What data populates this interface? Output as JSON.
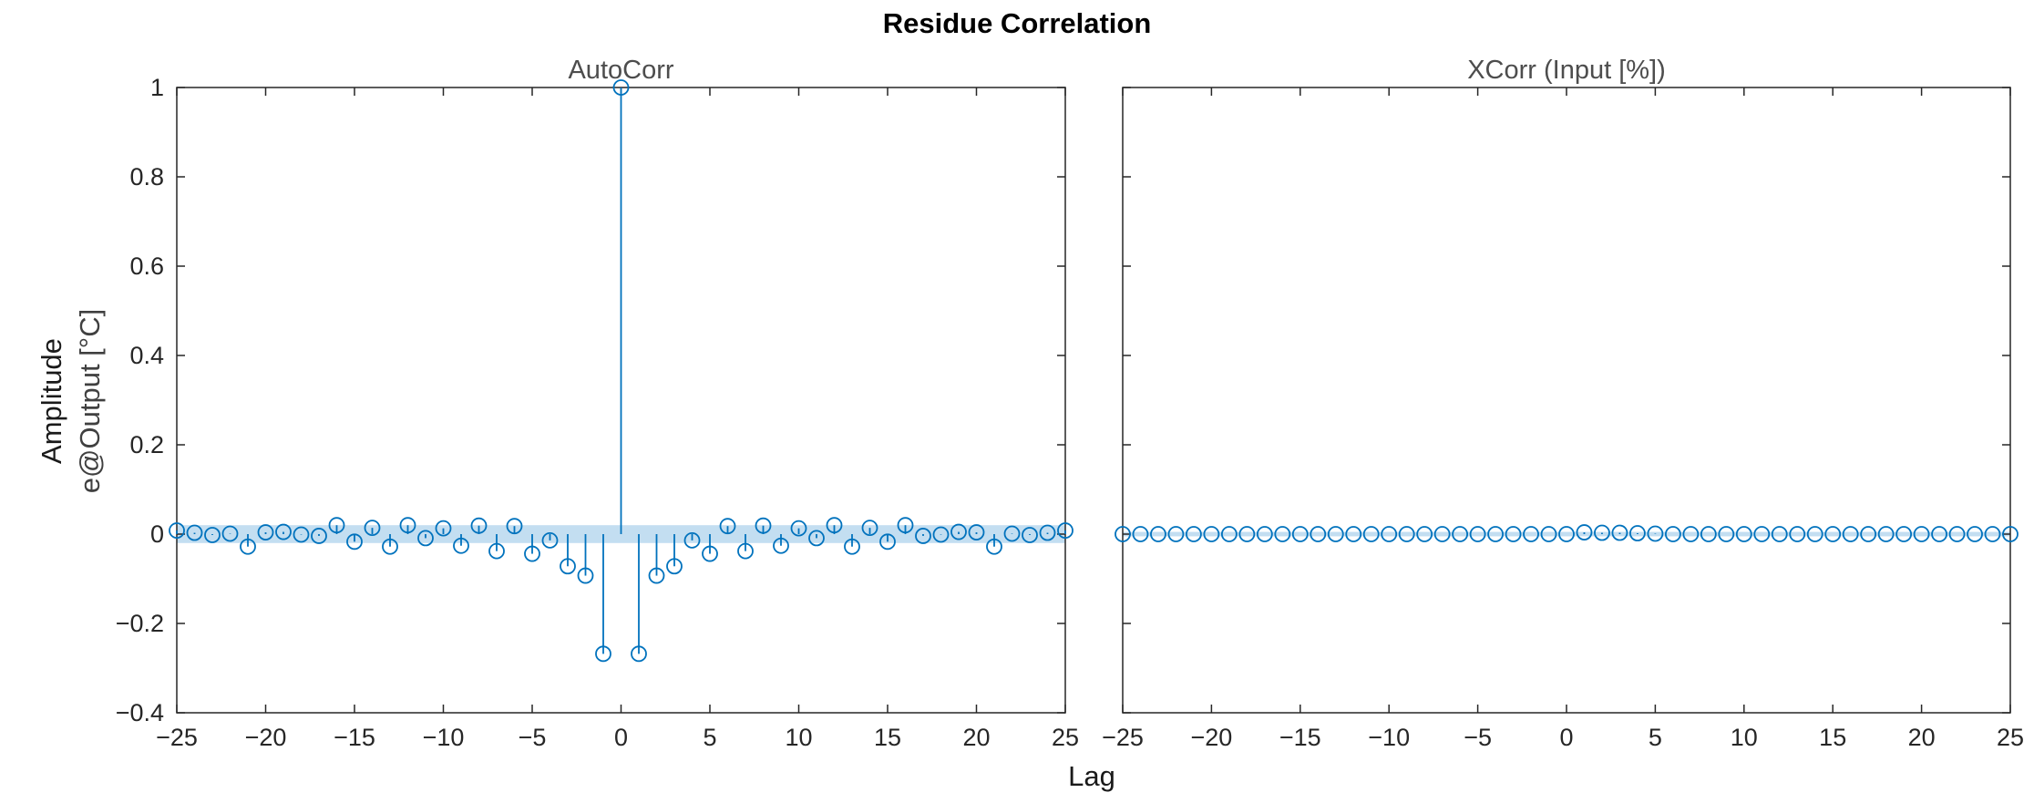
{
  "title": "Residue Correlation",
  "xlabel": "Lag",
  "ylabel": [
    "Amplitude",
    "e@Output [°C]"
  ],
  "colors": {
    "series": "#0072BD",
    "band": "#B9D8EE",
    "axis": "#262626",
    "tick_text": "#262626",
    "axes_title": "#4d4d4d"
  },
  "chart_data": [
    {
      "type": "stem",
      "title": "AutoCorr",
      "xlabel": "Lag",
      "ylabel": "Amplitude e@Output [°C]",
      "xlim": [
        -25,
        25
      ],
      "ylim": [
        -0.4,
        1
      ],
      "xticks": [
        -25,
        -20,
        -15,
        -10,
        -5,
        0,
        5,
        10,
        15,
        20,
        25
      ],
      "yticks": [
        -0.4,
        -0.2,
        0,
        0.2,
        0.4,
        0.6,
        0.8,
        1
      ],
      "xtick_labels": [
        "−25",
        "−20",
        "−15",
        "−10",
        "−5",
        "0",
        "5",
        "10",
        "15",
        "20",
        "25"
      ],
      "ytick_labels": [
        "−0.4",
        "−0.2",
        "0",
        "0.2",
        "0.4",
        "0.6",
        "0.8",
        "1"
      ],
      "confidence_band": [
        -0.02,
        0.02
      ],
      "x": [
        -25,
        -24,
        -23,
        -22,
        -21,
        -20,
        -19,
        -18,
        -17,
        -16,
        -15,
        -14,
        -13,
        -12,
        -11,
        -10,
        -9,
        -8,
        -7,
        -6,
        -5,
        -4,
        -3,
        -2,
        -1,
        0,
        1,
        2,
        3,
        4,
        5,
        6,
        7,
        8,
        9,
        10,
        11,
        12,
        13,
        14,
        15,
        16,
        17,
        18,
        19,
        20,
        21,
        22,
        23,
        24,
        25
      ],
      "y": [
        0.008,
        0.003,
        -0.002,
        0.001,
        -0.028,
        0.004,
        0.005,
        -0.001,
        -0.004,
        0.02,
        -0.017,
        0.014,
        -0.028,
        0.02,
        -0.009,
        0.013,
        -0.026,
        0.019,
        -0.038,
        0.018,
        -0.044,
        -0.014,
        -0.072,
        -0.093,
        -0.268,
        1.0,
        -0.268,
        -0.093,
        -0.072,
        -0.014,
        -0.044,
        0.018,
        -0.038,
        0.019,
        -0.026,
        0.013,
        -0.009,
        0.02,
        -0.028,
        0.014,
        -0.017,
        0.02,
        -0.004,
        -0.001,
        0.005,
        0.004,
        -0.028,
        0.001,
        -0.002,
        0.003,
        0.008
      ]
    },
    {
      "type": "stem",
      "title": "XCorr (Input [%])",
      "xlim": [
        -25,
        25
      ],
      "ylim": [
        -0.4,
        1
      ],
      "xticks": [
        -25,
        -20,
        -15,
        -10,
        -5,
        0,
        5,
        10,
        15,
        20,
        25
      ],
      "yticks": [
        -0.4,
        -0.2,
        0,
        0.2,
        0.4,
        0.6,
        0.8,
        1
      ],
      "xtick_labels": [
        "−25",
        "−20",
        "−15",
        "−10",
        "−5",
        "0",
        "5",
        "10",
        "15",
        "20",
        "25"
      ],
      "confidence_band": [
        -0.005,
        0.005
      ],
      "x": [
        -25,
        -24,
        -23,
        -22,
        -21,
        -20,
        -19,
        -18,
        -17,
        -16,
        -15,
        -14,
        -13,
        -12,
        -11,
        -10,
        -9,
        -8,
        -7,
        -6,
        -5,
        -4,
        -3,
        -2,
        -1,
        0,
        1,
        2,
        3,
        4,
        5,
        6,
        7,
        8,
        9,
        10,
        11,
        12,
        13,
        14,
        15,
        16,
        17,
        18,
        19,
        20,
        21,
        22,
        23,
        24,
        25
      ],
      "y": [
        0,
        0,
        0,
        0,
        0,
        0,
        0,
        0,
        0,
        0,
        0,
        0,
        0,
        0,
        0,
        0,
        0,
        0,
        0,
        0,
        0,
        0,
        0,
        0,
        0,
        0,
        0.004,
        0.003,
        0.003,
        0.002,
        0.001,
        0,
        0,
        0,
        0,
        0,
        0,
        0,
        0,
        0,
        0,
        0,
        0,
        0,
        0,
        0,
        0,
        0,
        0,
        0,
        0
      ]
    }
  ]
}
